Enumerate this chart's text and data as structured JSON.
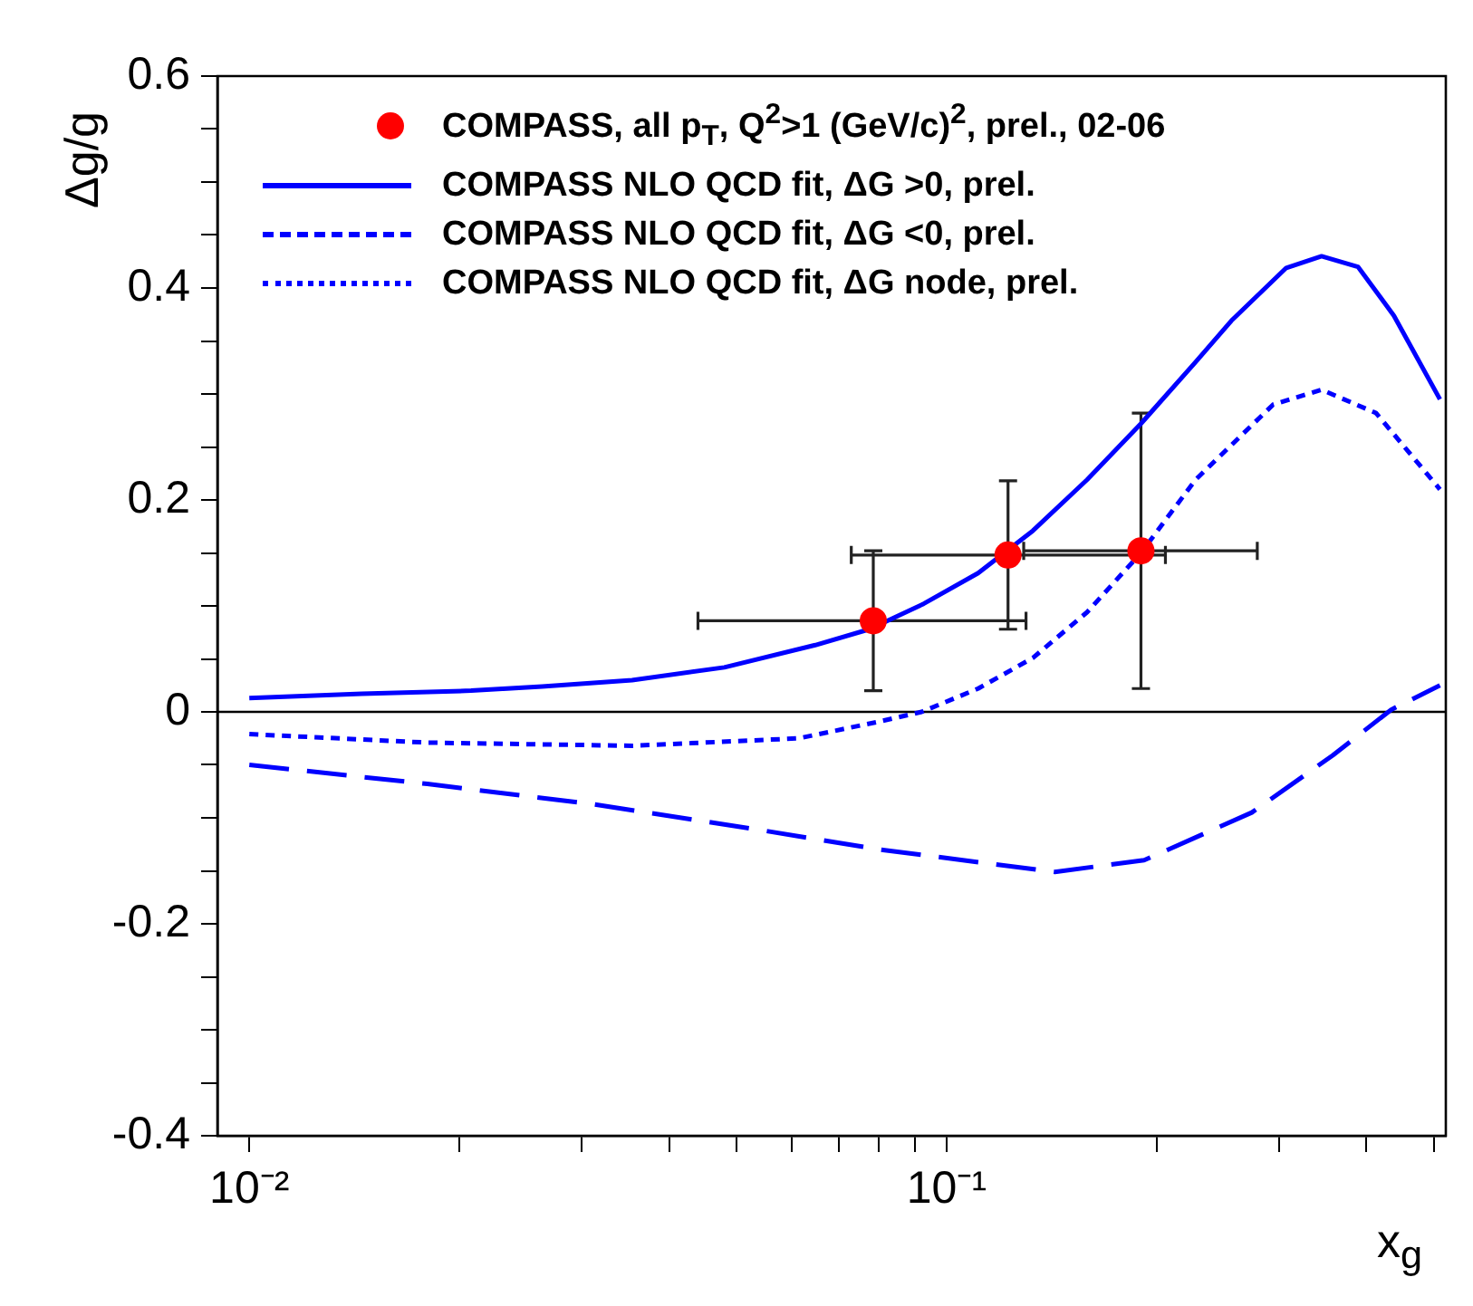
{
  "chart_data": {
    "type": "line",
    "ylabel": "Δg/g",
    "xlabel": "x$_{g}$",
    "log": "x",
    "grid": false,
    "legend": "top left",
    "xlim": [
      0.009,
      0.52
    ],
    "ylim": [
      -0.4,
      0.6
    ],
    "xticks": [
      {
        "value": 0.01,
        "label": "10⁻²"
      },
      {
        "value": 0.02,
        "label": null
      },
      {
        "value": 0.03,
        "label": null
      },
      {
        "value": 0.04,
        "label": null
      },
      {
        "value": 0.05,
        "label": null
      },
      {
        "value": 0.06,
        "label": null
      },
      {
        "value": 0.07,
        "label": null
      },
      {
        "value": 0.08,
        "label": null
      },
      {
        "value": 0.09,
        "label": null
      },
      {
        "value": 0.1,
        "label": "10⁻¹"
      },
      {
        "value": 0.2,
        "label": null
      },
      {
        "value": 0.3,
        "label": null
      },
      {
        "value": 0.4,
        "label": null
      },
      {
        "value": 0.5,
        "label": null
      }
    ],
    "yticks": [
      -0.4,
      {
        "value": -0.35,
        "label": null
      },
      {
        "value": -0.3,
        "label": null
      },
      {
        "value": -0.25,
        "label": null
      },
      -0.2,
      {
        "value": -0.15,
        "label": null
      },
      {
        "value": -0.1,
        "label": null
      },
      {
        "value": -0.05,
        "label": null
      },
      0,
      {
        "value": 0.05,
        "label": null
      },
      {
        "value": 0.1,
        "label": null
      },
      {
        "value": 0.15,
        "label": null
      },
      0.2,
      {
        "value": 0.25,
        "label": null
      },
      {
        "value": 0.3,
        "label": null
      },
      {
        "value": 0.35,
        "label": null
      },
      0.4,
      {
        "value": 0.45,
        "label": null
      },
      {
        "value": 0.5,
        "label": null
      },
      {
        "value": 0.55,
        "label": null
      },
      0.6
    ],
    "ref_lines": [
      {
        "axis": "y",
        "value": 0,
        "color": "#000000"
      }
    ],
    "series": [
      {
        "name": "COMPASS, all  p$_{T}$, Q$^{2}$>1 (GeV/c)$^{2}$, prel., 02-06",
        "type": "scatter",
        "marker": "circle",
        "color": "#ff0000",
        "x": [
          0.0785,
          0.1225,
          0.19
        ],
        "values": [
          0.086,
          0.148,
          0.152
        ],
        "errors": [
          0.066,
          0.07,
          0.13
        ],
        "xerrors": [
          [
            0.044,
            0.13
          ],
          [
            0.073,
            0.206
          ],
          [
            0.129,
            0.279
          ]
        ]
      },
      {
        "name": "COMPASS NLO QCD fit, ΔG >0, prel.",
        "line_style": "solid",
        "color": "#0000ff",
        "x": [
          0.01,
          0.0145,
          0.0208,
          0.0263,
          0.0354,
          0.048,
          0.0648,
          0.0775,
          0.0927,
          0.111,
          0.133,
          0.159,
          0.19,
          0.2275,
          0.256,
          0.307,
          0.345,
          0.389,
          0.438,
          0.51
        ],
        "values": [
          0.013,
          0.017,
          0.02,
          0.024,
          0.03,
          0.042,
          0.063,
          0.078,
          0.102,
          0.131,
          0.171,
          0.219,
          0.272,
          0.33,
          0.369,
          0.419,
          0.43,
          0.42,
          0.374,
          0.295
        ]
      },
      {
        "name": "COMPASS NLO QCD fit, ΔG <0, prel.",
        "line_style": "dashed",
        "color": "#0000ff",
        "x": [
          0.01,
          0.018,
          0.031,
          0.0535,
          0.0803,
          0.143,
          0.192,
          0.274,
          0.358,
          0.434,
          0.51
        ],
        "values": [
          -0.05,
          -0.068,
          -0.087,
          -0.111,
          -0.13,
          -0.151,
          -0.14,
          -0.095,
          -0.041,
          0.002,
          0.025
        ]
      },
      {
        "name": "COMPASS NLO QCD fit, ΔG node, prel.",
        "line_style": "dotted",
        "color": "#0000ff",
        "x": [
          0.01,
          0.018,
          0.0354,
          0.0613,
          0.0803,
          0.0921,
          0.111,
          0.133,
          0.159,
          0.19,
          0.2275,
          0.294,
          0.345,
          0.413,
          0.51
        ],
        "values": [
          -0.021,
          -0.029,
          -0.032,
          -0.025,
          -0.009,
          0,
          0.022,
          0.051,
          0.094,
          0.15,
          0.219,
          0.29,
          0.304,
          0.282,
          0.21
        ]
      }
    ]
  }
}
